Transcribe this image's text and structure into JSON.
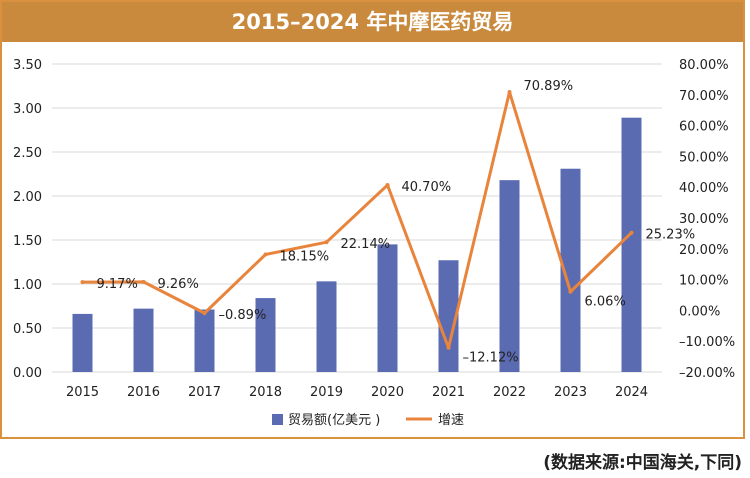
{
  "chart_data": {
    "type": "bar",
    "title": "2015–2024 年中摩医药贸易",
    "categories": [
      "2015",
      "2016",
      "2017",
      "2018",
      "2019",
      "2020",
      "2021",
      "2022",
      "2023",
      "2024"
    ],
    "series": [
      {
        "name": "贸易额(亿美元 )",
        "type": "bar",
        "axis": "left",
        "color": "#5b6bb1",
        "values": [
          0.66,
          0.72,
          0.71,
          0.84,
          1.03,
          1.45,
          1.27,
          2.18,
          2.31,
          2.89
        ]
      },
      {
        "name": "增速",
        "type": "line",
        "axis": "right",
        "color": "#e8843c",
        "values": [
          9.17,
          9.26,
          -0.89,
          18.15,
          22.14,
          40.7,
          -12.12,
          70.89,
          6.06,
          25.23
        ],
        "labels": [
          "9.17%",
          "9.26%",
          "–0.89%",
          "18.15%",
          "22.14%",
          "40.70%",
          "–12.12%",
          "70.89%",
          "6.06%",
          "25.23%"
        ]
      }
    ],
    "y_left": {
      "min": 0,
      "max": 3.5,
      "ticks": [
        "0.00",
        "0.50",
        "1.00",
        "1.50",
        "2.00",
        "2.50",
        "3.00",
        "3.50"
      ]
    },
    "y_right": {
      "min": -20,
      "max": 80,
      "ticks": [
        "–20.00%",
        "–10.00%",
        "0.00%",
        "10.00%",
        "20.00%",
        "30.00%",
        "40.00%",
        "50.00%",
        "60.00%",
        "70.00%",
        "80.00%"
      ]
    },
    "grid": true,
    "legend": "bottom"
  },
  "source_note": "(数据来源:中国海关,下同)"
}
